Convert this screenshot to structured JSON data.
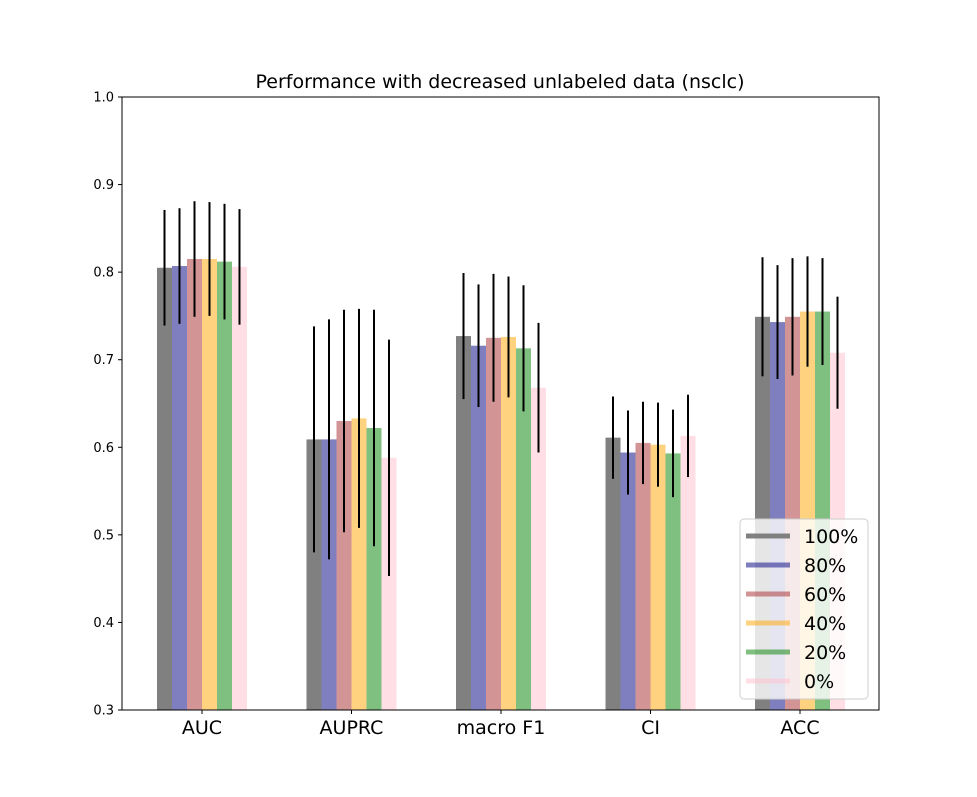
{
  "chart_data": {
    "type": "bar",
    "title": "Performance with decreased unlabeled data (nsclc)",
    "xlabel": "",
    "ylabel": "",
    "ylim": [
      0.3,
      1.0
    ],
    "yticks": [
      "0.3",
      "0.4",
      "0.5",
      "0.6",
      "0.7",
      "0.8",
      "0.9",
      "1.0"
    ],
    "categories": [
      "AUC",
      "AUPRC",
      "macro F1",
      "CI",
      "ACC"
    ],
    "legend_position": "lower-right",
    "grid": false,
    "series": [
      {
        "name": "100%",
        "color": "#808080",
        "opacity": 1.0,
        "values": [
          0.805,
          0.609,
          0.727,
          0.611,
          0.749
        ],
        "errors": [
          0.066,
          0.129,
          0.072,
          0.047,
          0.068
        ]
      },
      {
        "name": "80%",
        "color": "#000080",
        "opacity": 0.5,
        "values": [
          0.807,
          0.609,
          0.716,
          0.594,
          0.743
        ],
        "errors": [
          0.066,
          0.137,
          0.07,
          0.048,
          0.065
        ]
      },
      {
        "name": "60%",
        "color": "#a52a2a",
        "opacity": 0.5,
        "values": [
          0.815,
          0.63,
          0.725,
          0.605,
          0.749
        ],
        "errors": [
          0.066,
          0.127,
          0.073,
          0.047,
          0.067
        ]
      },
      {
        "name": "40%",
        "color": "#ffa500",
        "opacity": 0.5,
        "values": [
          0.815,
          0.633,
          0.726,
          0.603,
          0.755
        ],
        "errors": [
          0.065,
          0.125,
          0.069,
          0.048,
          0.063
        ]
      },
      {
        "name": "20%",
        "color": "#008000",
        "opacity": 0.5,
        "values": [
          0.812,
          0.622,
          0.713,
          0.593,
          0.755
        ],
        "errors": [
          0.066,
          0.135,
          0.072,
          0.05,
          0.061
        ]
      },
      {
        "name": "0%",
        "color": "#ffc0cb",
        "opacity": 0.5,
        "values": [
          0.806,
          0.588,
          0.668,
          0.613,
          0.708
        ],
        "errors": [
          0.066,
          0.135,
          0.074,
          0.047,
          0.064
        ]
      }
    ]
  }
}
